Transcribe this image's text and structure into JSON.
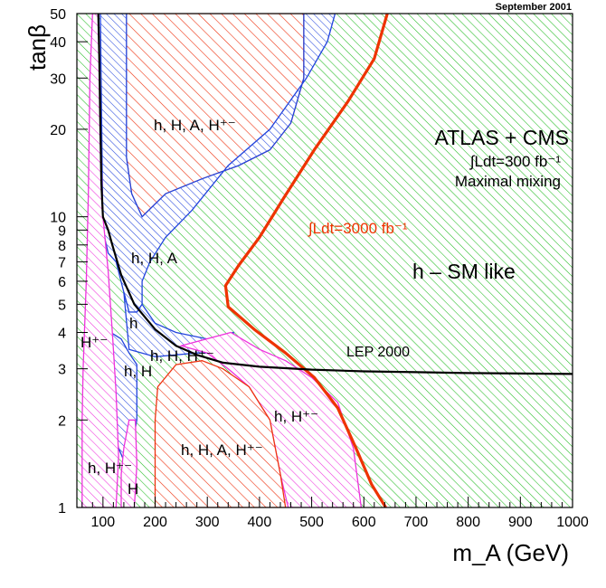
{
  "chart_data": {
    "type": "area",
    "title": "",
    "stamp": "September 2001",
    "xlabel": "m_A (GeV)",
    "ylabel": "tanβ",
    "x_axis": {
      "scale": "linear",
      "range": [
        50,
        1000
      ],
      "ticks": [
        100,
        200,
        300,
        400,
        500,
        600,
        700,
        800,
        900,
        1000
      ]
    },
    "y_axis": {
      "scale": "log",
      "range": [
        1,
        50
      ],
      "ticks": [
        1,
        2,
        3,
        4,
        5,
        6,
        7,
        8,
        9,
        10,
        20,
        30,
        40,
        50
      ]
    },
    "colors": {
      "red": "#ee3311",
      "blue": "#2244dd",
      "green": "#22bb22",
      "magenta": "#ee33dd",
      "thick_red": "#ee3300",
      "black": "#000000"
    },
    "legend_block": {
      "line1": "ATLAS + CMS",
      "line2": "∫Ldt=300 fb⁻¹",
      "line3": "Maximal mixing"
    },
    "curve_3000": {
      "label": "∫Ldt=3000 fb⁻¹",
      "points": [
        [
          645,
          50
        ],
        [
          620,
          35
        ],
        [
          570,
          25
        ],
        [
          505,
          17
        ],
        [
          445,
          11.5
        ],
        [
          400,
          8.5
        ],
        [
          360,
          6.8
        ],
        [
          335,
          5.8
        ],
        [
          340,
          4.9
        ],
        [
          390,
          4.1
        ],
        [
          450,
          3.4
        ],
        [
          505,
          2.8
        ],
        [
          550,
          2.2
        ],
        [
          585,
          1.6
        ],
        [
          615,
          1.2
        ],
        [
          642,
          1.0
        ]
      ]
    },
    "lep_2000": {
      "label": "LEP 2000",
      "points": [
        [
          91,
          50
        ],
        [
          93,
          35
        ],
        [
          95,
          20
        ],
        [
          97,
          13
        ],
        [
          100,
          10
        ],
        [
          110,
          9
        ],
        [
          118,
          8
        ],
        [
          135,
          6.3
        ],
        [
          160,
          5
        ],
        [
          200,
          4.1
        ],
        [
          240,
          3.6
        ],
        [
          280,
          3.35
        ],
        [
          330,
          3.15
        ],
        [
          400,
          3.05
        ],
        [
          500,
          2.98
        ],
        [
          600,
          2.94
        ],
        [
          700,
          2.92
        ],
        [
          800,
          2.9
        ],
        [
          900,
          2.89
        ],
        [
          1000,
          2.88
        ]
      ]
    },
    "regions": [
      {
        "name": "h, H, A, H±",
        "label": "h, H, A, H⁺⁻",
        "color": "red",
        "points": [
          [
            145,
            50
          ],
          [
            485,
            50
          ],
          [
            485,
            30
          ],
          [
            460,
            21
          ],
          [
            420,
            17
          ],
          [
            360,
            15
          ],
          [
            290,
            13.5
          ],
          [
            220,
            12
          ],
          [
            175,
            10
          ],
          [
            155,
            12
          ],
          [
            145,
            16
          ]
        ]
      },
      {
        "name": "h, H, A",
        "label": "h, H, A",
        "color": "blue",
        "points": [
          [
            95,
            50
          ],
          [
            145,
            50
          ],
          [
            145,
            16
          ],
          [
            155,
            12
          ],
          [
            175,
            10
          ],
          [
            220,
            12
          ],
          [
            290,
            13.5
          ],
          [
            360,
            15
          ],
          [
            420,
            17
          ],
          [
            460,
            21
          ],
          [
            485,
            30
          ],
          [
            485,
            50
          ],
          [
            545,
            50
          ],
          [
            530,
            40
          ],
          [
            490,
            30
          ],
          [
            420,
            20
          ],
          [
            340,
            15
          ],
          [
            270,
            10.5
          ],
          [
            220,
            8.5
          ],
          [
            190,
            7
          ],
          [
            175,
            6
          ],
          [
            175,
            5
          ],
          [
            165,
            4.7
          ],
          [
            150,
            4.7
          ],
          [
            140,
            5.5
          ],
          [
            125,
            7
          ],
          [
            110,
            7.5
          ],
          [
            100,
            9
          ]
        ]
      },
      {
        "name": "h, H, H±",
        "label": "h, H, H⁺⁻",
        "color": "blue",
        "points": [
          [
            140,
            5.5
          ],
          [
            150,
            4.7
          ],
          [
            165,
            4.7
          ],
          [
            175,
            5
          ],
          [
            200,
            4.3
          ],
          [
            240,
            4.0
          ],
          [
            300,
            3.8
          ],
          [
            350,
            4.0
          ],
          [
            350,
            3.4
          ],
          [
            280,
            3.4
          ],
          [
            200,
            3.3
          ],
          [
            150,
            3.5
          ]
        ]
      },
      {
        "name": "h, H",
        "label": "h, H",
        "color": "blue",
        "points": [
          [
            105,
            4.5
          ],
          [
            115,
            4.0
          ],
          [
            135,
            3.8
          ],
          [
            150,
            3.4
          ],
          [
            165,
            3.1
          ],
          [
            165,
            2.0
          ],
          [
            155,
            1.6
          ],
          [
            145,
            1.3
          ],
          [
            140,
            1.45
          ],
          [
            130,
            1.6
          ],
          [
            120,
            1.9
          ],
          [
            110,
            2.5
          ],
          [
            105,
            3.2
          ]
        ]
      },
      {
        "name": "h, H±",
        "label": "h, H⁺⁻",
        "color": "magenta",
        "points": [
          [
            60,
            1.0
          ],
          [
            125,
            1.0
          ],
          [
            130,
            1.5
          ],
          [
            125,
            2.5
          ],
          [
            118,
            4.0
          ],
          [
            110,
            6.5
          ],
          [
            100,
            10
          ],
          [
            95,
            20
          ],
          [
            92,
            50
          ],
          [
            80,
            50
          ],
          [
            75,
            30
          ],
          [
            72,
            12
          ],
          [
            68,
            6
          ],
          [
            62,
            3
          ],
          [
            60,
            2
          ]
        ]
      },
      {
        "name": "H",
        "label": "H",
        "color": "magenta",
        "points": [
          [
            135,
            1.0
          ],
          [
            160,
            1.0
          ],
          [
            165,
            1.4
          ],
          [
            162,
            2.0
          ],
          [
            150,
            2.0
          ],
          [
            140,
            1.6
          ],
          [
            135,
            1.3
          ]
        ]
      },
      {
        "name": "h, H±",
        "label": "h, H⁺⁻",
        "color": "magenta",
        "points": [
          [
            345,
            4.0
          ],
          [
            400,
            3.5
          ],
          [
            450,
            3.2
          ],
          [
            500,
            2.8
          ],
          [
            550,
            2.3
          ],
          [
            580,
            1.6
          ],
          [
            595,
            1.0
          ],
          [
            455,
            1.0
          ],
          [
            440,
            1.3
          ],
          [
            420,
            2.0
          ],
          [
            380,
            2.6
          ],
          [
            340,
            3.0
          ],
          [
            300,
            3.4
          ],
          [
            250,
            3.6
          ]
        ]
      },
      {
        "name": "h, H, A, H±",
        "label": "h, H, A, H⁺⁻",
        "color": "red",
        "points": [
          [
            200,
            1.0
          ],
          [
            450,
            1.0
          ],
          [
            440,
            1.3
          ],
          [
            420,
            2.0
          ],
          [
            380,
            2.6
          ],
          [
            330,
            3.0
          ],
          [
            290,
            3.2
          ],
          [
            240,
            3.1
          ],
          [
            205,
            2.6
          ],
          [
            200,
            2.0
          ]
        ]
      },
      {
        "name": "h - SM like",
        "label": "h – SM like",
        "color": "green",
        "background": true
      }
    ],
    "extra_labels": {
      "h_label": "h",
      "h_pm": "H⁺⁻"
    }
  }
}
